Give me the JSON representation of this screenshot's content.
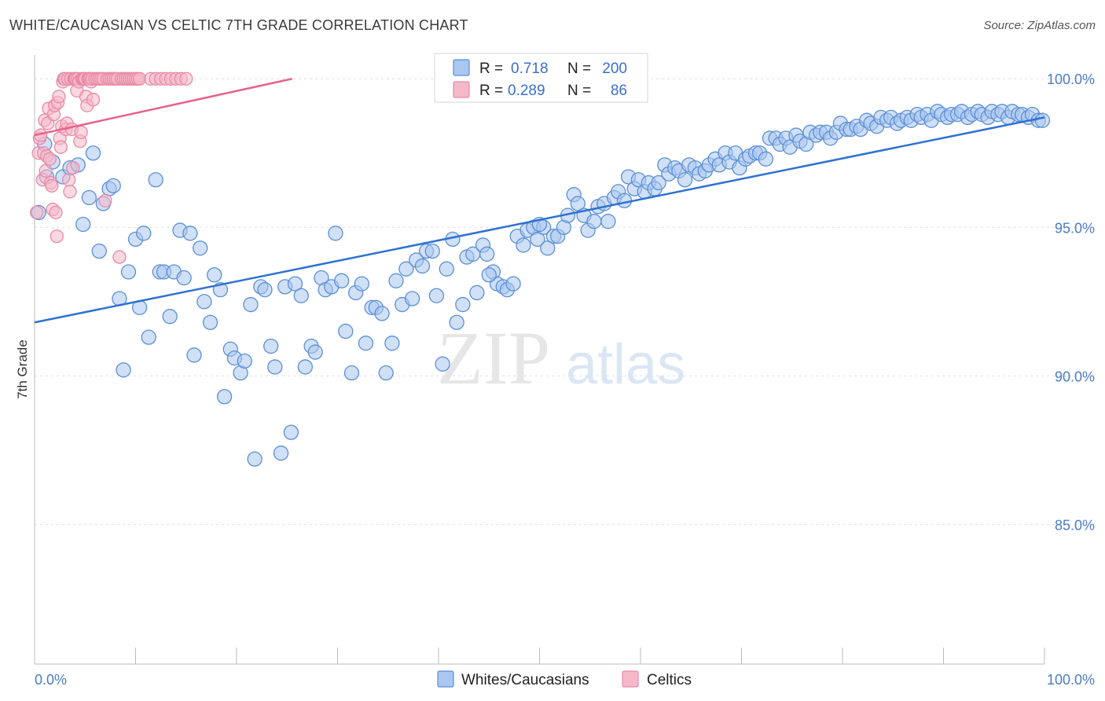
{
  "title": "WHITE/CAUCASIAN VS CELTIC 7TH GRADE CORRELATION CHART",
  "source": "Source: ZipAtlas.com",
  "watermark": {
    "zip": "ZIP",
    "atlas": "atlas"
  },
  "colors": {
    "blue_fill": "#a9c7f0",
    "blue_stroke": "#5b8fd6",
    "blue_line": "#2f72d0",
    "pink_fill": "#f6b8c9",
    "pink_stroke": "#e88aa6",
    "pink_line": "#e8628b",
    "tick_text": "#4a7cc9",
    "grid": "#dddddd"
  },
  "legend": {
    "rows": [
      {
        "r_label": "R =",
        "r_value": "0.718",
        "n_label": "N =",
        "n_value": "200",
        "color": "blue"
      },
      {
        "r_label": "R =",
        "r_value": "0.289",
        "n_label": "N =",
        "n_value": "86",
        "color": "pink"
      }
    ]
  },
  "bottom_legend": [
    "Whites/Caucasians",
    "Celtics"
  ],
  "chart_data": {
    "type": "scatter",
    "title": "WHITE/CAUCASIAN VS CELTIC 7TH GRADE CORRELATION CHART",
    "xlabel": "",
    "ylabel": "7th Grade",
    "xlim": [
      0,
      100
    ],
    "ylim": [
      80.3,
      100.8
    ],
    "x_tick_labels": [
      "0.0%",
      "100.0%"
    ],
    "y_ticks": [
      85,
      90,
      95,
      100
    ],
    "y_tick_labels": [
      "85.0%",
      "90.0%",
      "95.0%",
      "100.0%"
    ],
    "grid": true,
    "series": [
      {
        "name": "Whites/Caucasians",
        "color": "blue",
        "trend": {
          "x": [
            0,
            100
          ],
          "y": [
            91.8,
            98.7
          ]
        },
        "points": [
          [
            0.4,
            95.5
          ],
          [
            1.0,
            97.8
          ],
          [
            1.2,
            96.7
          ],
          [
            1.8,
            97.2
          ],
          [
            2.8,
            96.7
          ],
          [
            3.5,
            97.0
          ],
          [
            4.3,
            97.1
          ],
          [
            4.8,
            95.1
          ],
          [
            5.4,
            96.0
          ],
          [
            5.8,
            97.5
          ],
          [
            6.4,
            94.2
          ],
          [
            6.8,
            95.8
          ],
          [
            7.4,
            96.3
          ],
          [
            7.8,
            96.4
          ],
          [
            8.4,
            92.6
          ],
          [
            8.8,
            90.2
          ],
          [
            9.3,
            93.5
          ],
          [
            10.0,
            94.6
          ],
          [
            10.4,
            92.3
          ],
          [
            10.8,
            94.8
          ],
          [
            11.3,
            91.3
          ],
          [
            12.0,
            96.6
          ],
          [
            12.4,
            93.5
          ],
          [
            12.8,
            93.5
          ],
          [
            13.4,
            92.0
          ],
          [
            13.8,
            93.5
          ],
          [
            14.4,
            94.9
          ],
          [
            14.8,
            93.3
          ],
          [
            15.4,
            94.8
          ],
          [
            15.8,
            90.7
          ],
          [
            16.4,
            94.3
          ],
          [
            16.8,
            92.5
          ],
          [
            17.4,
            91.8
          ],
          [
            17.8,
            93.4
          ],
          [
            18.4,
            92.9
          ],
          [
            18.8,
            89.3
          ],
          [
            19.4,
            90.9
          ],
          [
            19.8,
            90.6
          ],
          [
            20.4,
            90.1
          ],
          [
            20.8,
            90.5
          ],
          [
            21.4,
            92.4
          ],
          [
            21.8,
            87.2
          ],
          [
            22.4,
            93.0
          ],
          [
            22.8,
            92.9
          ],
          [
            23.4,
            91.0
          ],
          [
            23.8,
            90.3
          ],
          [
            24.4,
            87.4
          ],
          [
            24.8,
            93.0
          ],
          [
            25.4,
            88.1
          ],
          [
            25.8,
            93.1
          ],
          [
            26.4,
            92.7
          ],
          [
            26.8,
            90.3
          ],
          [
            27.4,
            91.0
          ],
          [
            27.8,
            90.8
          ],
          [
            28.4,
            93.3
          ],
          [
            28.8,
            92.9
          ],
          [
            29.4,
            93.0
          ],
          [
            29.8,
            94.8
          ],
          [
            30.4,
            93.2
          ],
          [
            30.8,
            91.5
          ],
          [
            31.4,
            90.1
          ],
          [
            31.8,
            92.8
          ],
          [
            32.4,
            93.1
          ],
          [
            32.8,
            91.1
          ],
          [
            33.4,
            92.3
          ],
          [
            33.8,
            92.3
          ],
          [
            34.4,
            92.1
          ],
          [
            34.8,
            90.1
          ],
          [
            35.4,
            91.1
          ],
          [
            35.8,
            93.2
          ],
          [
            36.4,
            92.4
          ],
          [
            36.8,
            93.6
          ],
          [
            37.4,
            92.6
          ],
          [
            37.8,
            93.9
          ],
          [
            38.4,
            93.7
          ],
          [
            38.8,
            94.2
          ],
          [
            39.4,
            94.2
          ],
          [
            39.8,
            92.7
          ],
          [
            40.4,
            90.4
          ],
          [
            40.8,
            93.6
          ],
          [
            41.4,
            94.6
          ],
          [
            41.8,
            91.8
          ],
          [
            42.4,
            92.4
          ],
          [
            42.8,
            94.0
          ],
          [
            43.4,
            94.1
          ],
          [
            43.8,
            92.8
          ],
          [
            44.4,
            94.4
          ],
          [
            44.8,
            94.1
          ],
          [
            45.4,
            93.5
          ],
          [
            45.8,
            93.1
          ],
          [
            46.4,
            93.0
          ],
          [
            46.8,
            92.9
          ],
          [
            47.4,
            93.1
          ],
          [
            47.8,
            94.7
          ],
          [
            48.4,
            94.4
          ],
          [
            48.8,
            94.9
          ],
          [
            49.4,
            95.0
          ],
          [
            49.8,
            94.6
          ],
          [
            50.4,
            95.0
          ],
          [
            50.8,
            94.3
          ],
          [
            51.4,
            94.7
          ],
          [
            51.8,
            94.7
          ],
          [
            52.4,
            95.0
          ],
          [
            52.8,
            95.4
          ],
          [
            53.4,
            96.1
          ],
          [
            53.8,
            95.8
          ],
          [
            54.4,
            95.4
          ],
          [
            54.8,
            94.9
          ],
          [
            55.4,
            95.2
          ],
          [
            55.8,
            95.7
          ],
          [
            56.4,
            95.8
          ],
          [
            56.8,
            95.2
          ],
          [
            57.4,
            96.0
          ],
          [
            57.8,
            96.2
          ],
          [
            58.4,
            95.9
          ],
          [
            58.8,
            96.7
          ],
          [
            59.4,
            96.3
          ],
          [
            59.8,
            96.6
          ],
          [
            60.4,
            96.2
          ],
          [
            60.8,
            96.5
          ],
          [
            61.4,
            96.3
          ],
          [
            61.8,
            96.5
          ],
          [
            62.4,
            97.1
          ],
          [
            62.8,
            96.8
          ],
          [
            63.4,
            97.0
          ],
          [
            63.8,
            96.9
          ],
          [
            64.4,
            96.6
          ],
          [
            64.8,
            97.1
          ],
          [
            65.4,
            97.0
          ],
          [
            65.8,
            96.8
          ],
          [
            66.4,
            96.9
          ],
          [
            66.8,
            97.1
          ],
          [
            67.4,
            97.3
          ],
          [
            67.8,
            97.1
          ],
          [
            68.4,
            97.5
          ],
          [
            68.8,
            97.2
          ],
          [
            69.4,
            97.5
          ],
          [
            69.8,
            97.0
          ],
          [
            70.4,
            97.3
          ],
          [
            70.8,
            97.4
          ],
          [
            71.4,
            97.5
          ],
          [
            71.8,
            97.5
          ],
          [
            72.4,
            97.3
          ],
          [
            72.8,
            98.0
          ],
          [
            73.4,
            98.0
          ],
          [
            73.8,
            97.8
          ],
          [
            74.4,
            98.0
          ],
          [
            74.8,
            97.7
          ],
          [
            75.4,
            98.1
          ],
          [
            75.8,
            97.9
          ],
          [
            76.4,
            97.8
          ],
          [
            76.8,
            98.2
          ],
          [
            77.4,
            98.1
          ],
          [
            77.8,
            98.2
          ],
          [
            78.4,
            98.2
          ],
          [
            78.8,
            98.0
          ],
          [
            79.4,
            98.2
          ],
          [
            79.8,
            98.5
          ],
          [
            80.4,
            98.3
          ],
          [
            80.8,
            98.3
          ],
          [
            81.4,
            98.4
          ],
          [
            81.8,
            98.3
          ],
          [
            82.4,
            98.6
          ],
          [
            82.8,
            98.5
          ],
          [
            83.4,
            98.4
          ],
          [
            83.8,
            98.7
          ],
          [
            84.4,
            98.6
          ],
          [
            84.8,
            98.7
          ],
          [
            85.4,
            98.5
          ],
          [
            85.8,
            98.6
          ],
          [
            86.4,
            98.7
          ],
          [
            86.8,
            98.6
          ],
          [
            87.4,
            98.8
          ],
          [
            87.8,
            98.7
          ],
          [
            88.4,
            98.8
          ],
          [
            88.8,
            98.6
          ],
          [
            89.4,
            98.9
          ],
          [
            89.8,
            98.8
          ],
          [
            90.4,
            98.7
          ],
          [
            90.8,
            98.8
          ],
          [
            91.4,
            98.8
          ],
          [
            91.8,
            98.9
          ],
          [
            92.4,
            98.7
          ],
          [
            92.8,
            98.8
          ],
          [
            93.4,
            98.9
          ],
          [
            93.8,
            98.8
          ],
          [
            94.4,
            98.7
          ],
          [
            94.8,
            98.9
          ],
          [
            95.4,
            98.8
          ],
          [
            95.8,
            98.9
          ],
          [
            96.4,
            98.7
          ],
          [
            96.8,
            98.9
          ],
          [
            97.4,
            98.8
          ],
          [
            97.8,
            98.8
          ],
          [
            98.4,
            98.7
          ],
          [
            98.8,
            98.8
          ],
          [
            99.4,
            98.6
          ],
          [
            99.8,
            98.6
          ],
          [
            50.0,
            95.1
          ],
          [
            45.0,
            93.4
          ]
        ]
      },
      {
        "name": "Celtics",
        "color": "pink",
        "trend": {
          "x": [
            0,
            25.5
          ],
          "y": [
            98.1,
            100.0
          ]
        },
        "points": [
          [
            0.2,
            95.5
          ],
          [
            0.4,
            97.5
          ],
          [
            0.5,
            98.0
          ],
          [
            0.6,
            98.1
          ],
          [
            0.8,
            96.6
          ],
          [
            0.9,
            97.5
          ],
          [
            1.0,
            98.6
          ],
          [
            1.1,
            96.9
          ],
          [
            1.2,
            97.4
          ],
          [
            1.3,
            98.5
          ],
          [
            1.4,
            99.0
          ],
          [
            1.5,
            97.3
          ],
          [
            1.6,
            96.5
          ],
          [
            1.7,
            96.4
          ],
          [
            1.8,
            95.6
          ],
          [
            1.9,
            98.8
          ],
          [
            2.0,
            99.1
          ],
          [
            2.1,
            95.5
          ],
          [
            2.2,
            94.7
          ],
          [
            2.3,
            99.2
          ],
          [
            2.4,
            99.4
          ],
          [
            2.5,
            98.0
          ],
          [
            2.6,
            97.7
          ],
          [
            2.7,
            98.4
          ],
          [
            2.8,
            99.9
          ],
          [
            2.9,
            100.0
          ],
          [
            3.0,
            100.0
          ],
          [
            3.1,
            98.3
          ],
          [
            3.2,
            98.5
          ],
          [
            3.3,
            100.0
          ],
          [
            3.4,
            96.6
          ],
          [
            3.5,
            96.2
          ],
          [
            3.6,
            100.0
          ],
          [
            3.7,
            98.3
          ],
          [
            3.8,
            97.0
          ],
          [
            3.9,
            100.0
          ],
          [
            4.0,
            100.0
          ],
          [
            4.1,
            100.0
          ],
          [
            4.2,
            99.6
          ],
          [
            4.3,
            100.0
          ],
          [
            4.4,
            99.9
          ],
          [
            4.5,
            97.9
          ],
          [
            4.6,
            98.2
          ],
          [
            4.7,
            100.0
          ],
          [
            4.8,
            100.0
          ],
          [
            4.9,
            100.0
          ],
          [
            5.0,
            100.0
          ],
          [
            5.1,
            99.4
          ],
          [
            5.2,
            99.1
          ],
          [
            5.3,
            100.0
          ],
          [
            5.4,
            100.0
          ],
          [
            5.5,
            100.0
          ],
          [
            5.6,
            99.9
          ],
          [
            5.7,
            100.0
          ],
          [
            5.8,
            99.3
          ],
          [
            6.0,
            100.0
          ],
          [
            6.2,
            100.0
          ],
          [
            6.4,
            100.0
          ],
          [
            6.6,
            100.0
          ],
          [
            6.8,
            100.0
          ],
          [
            7.0,
            95.9
          ],
          [
            7.2,
            100.0
          ],
          [
            7.4,
            100.0
          ],
          [
            7.6,
            100.0
          ],
          [
            7.8,
            100.0
          ],
          [
            8.0,
            100.0
          ],
          [
            8.2,
            100.0
          ],
          [
            8.4,
            94.0
          ],
          [
            8.6,
            100.0
          ],
          [
            8.8,
            100.0
          ],
          [
            9.0,
            100.0
          ],
          [
            9.2,
            100.0
          ],
          [
            9.4,
            100.0
          ],
          [
            9.6,
            100.0
          ],
          [
            9.8,
            100.0
          ],
          [
            10.0,
            100.0
          ],
          [
            10.2,
            100.0
          ],
          [
            10.4,
            100.0
          ],
          [
            11.5,
            100.0
          ],
          [
            12.0,
            100.0
          ],
          [
            12.5,
            100.0
          ],
          [
            13.0,
            100.0
          ],
          [
            13.5,
            100.0
          ],
          [
            14.0,
            100.0
          ],
          [
            14.5,
            100.0
          ],
          [
            15.0,
            100.0
          ]
        ]
      }
    ]
  }
}
